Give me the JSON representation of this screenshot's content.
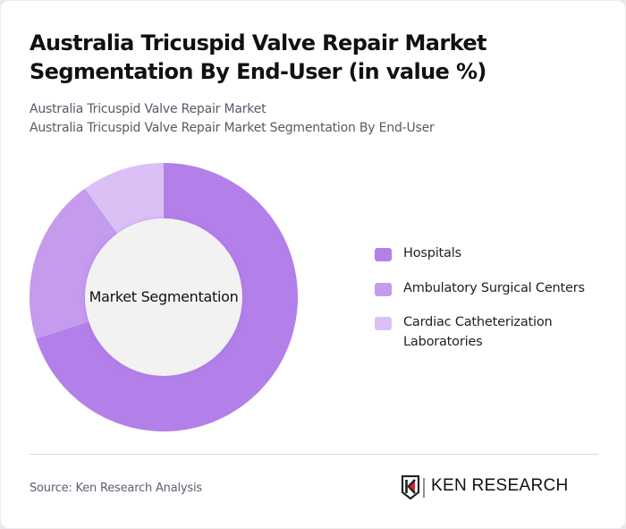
{
  "header": {
    "title": "Australia Tricuspid Valve Repair Market Segmentation By End-User (in value %)",
    "subtitle_line1": "Australia Tricuspid Valve Repair Market",
    "subtitle_line2": "Australia Tricuspid Valve Repair Market Segmentation By End-User"
  },
  "chart": {
    "center_label": "Market Segmentation"
  },
  "legend": {
    "items": [
      {
        "label": "Hospitals",
        "color": "#b380ea"
      },
      {
        "label": "Ambulatory Surgical Centers",
        "color": "#c49bed"
      },
      {
        "label": "Cardiac Catheterization",
        "label_line2": "Laboratories",
        "color": "#dbc0f6"
      }
    ]
  },
  "footer": {
    "source": "Source: Ken Research Analysis",
    "logo_text": "KEN RESEARCH"
  },
  "chart_data": {
    "type": "pie",
    "subtype": "donut",
    "title": "Australia Tricuspid Valve Repair Market Segmentation By End-User (in value %)",
    "subtitle": "Australia Tricuspid Valve Repair Market / Australia Tricuspid Valve Repair Market Segmentation By End-User",
    "center_label": "Market Segmentation",
    "categories": [
      "Hospitals",
      "Ambulatory Surgical Centers",
      "Cardiac Catheterization Laboratories"
    ],
    "values": [
      70,
      20,
      10
    ],
    "unit": "%",
    "colors": [
      "#b380ea",
      "#c49bed",
      "#dbc0f6"
    ],
    "start_angle": "12 o'clock, clockwise",
    "legend_position": "right",
    "data_labels": false
  }
}
